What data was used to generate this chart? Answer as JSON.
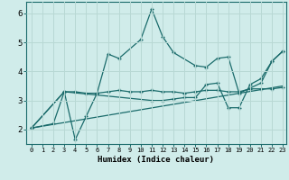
{
  "background_color": "#d0ecea",
  "grid_color": "#b8d8d4",
  "line_color": "#1a6b6b",
  "x_min": -0.5,
  "x_max": 23.3,
  "y_min": 1.5,
  "y_max": 6.4,
  "xlabel": "Humidex (Indice chaleur)",
  "x_ticks": [
    0,
    1,
    2,
    3,
    4,
    5,
    6,
    7,
    8,
    9,
    10,
    11,
    12,
    13,
    14,
    15,
    16,
    17,
    18,
    19,
    20,
    21,
    22,
    23
  ],
  "y_ticks": [
    2,
    3,
    4,
    5,
    6
  ],
  "line1_x": [
    0,
    2,
    3,
    4,
    5,
    6,
    7,
    8,
    10,
    11,
    12,
    13,
    15,
    16,
    17,
    18,
    19,
    21,
    22,
    23
  ],
  "line1_y": [
    2.05,
    2.2,
    3.3,
    1.65,
    2.45,
    3.25,
    4.6,
    4.45,
    5.1,
    6.15,
    5.2,
    4.65,
    4.2,
    4.15,
    4.45,
    4.5,
    3.25,
    3.6,
    4.35,
    4.7
  ],
  "line2_x": [
    0,
    3,
    4,
    5,
    6,
    7,
    8,
    9,
    10,
    11,
    12,
    13,
    14,
    15,
    16,
    17,
    18,
    19,
    20,
    21,
    22,
    23
  ],
  "line2_y": [
    2.05,
    3.3,
    3.3,
    3.25,
    3.25,
    3.3,
    3.35,
    3.3,
    3.3,
    3.35,
    3.3,
    3.3,
    3.25,
    3.3,
    3.35,
    3.35,
    3.3,
    3.3,
    3.4,
    3.4,
    3.4,
    3.45
  ],
  "line3_x": [
    0,
    23
  ],
  "line3_y": [
    2.05,
    3.5
  ],
  "line4_x": [
    0,
    3,
    11,
    12,
    13,
    14,
    15,
    16,
    17,
    18,
    19,
    20,
    21,
    22,
    23
  ],
  "line4_y": [
    2.05,
    3.3,
    3.0,
    3.0,
    3.05,
    3.1,
    3.1,
    3.55,
    3.6,
    2.75,
    2.75,
    3.55,
    3.75,
    4.35,
    4.7
  ]
}
